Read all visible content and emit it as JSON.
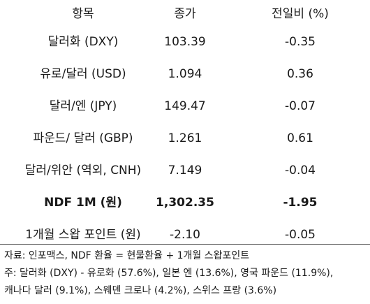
{
  "table": {
    "headers": [
      "항목",
      "종가",
      "전일비 (%)"
    ],
    "rows": [
      {
        "item": "달러화 (DXY)",
        "close": "103.39",
        "change": "-0.35",
        "bold": false
      },
      {
        "item": "유로/달러 (USD)",
        "close": "1.094",
        "change": "0.36",
        "bold": false
      },
      {
        "item": "달러/엔 (JPY)",
        "close": "149.47",
        "change": "-0.07",
        "bold": false
      },
      {
        "item": "파운드/ 달러 (GBP)",
        "close": "1.261",
        "change": "0.61",
        "bold": false
      },
      {
        "item": "달러/위안 (역외, CNH)",
        "close": "7.149",
        "change": "-0.04",
        "bold": false
      },
      {
        "item": "NDF 1M (원)",
        "close": "1,302.35",
        "change": "-1.95",
        "bold": true
      },
      {
        "item": "1개월 스왑 포인트 (원)",
        "close": "-2.10",
        "change": "-0.05",
        "bold": false
      }
    ]
  },
  "notes": [
    "자료: 인포맥스, NDF 환율 = 현물환율 + 1개월 스왑포인트",
    "주: 달러화 (DXY) - 유로화 (57.6%), 일본 엔 (13.6%), 영국 파운드 (11.9%),",
    "캐나다 달러 (9.1%), 스웨덴 크로나 (4.2%), 스위스 프랑 (3.6%)"
  ]
}
